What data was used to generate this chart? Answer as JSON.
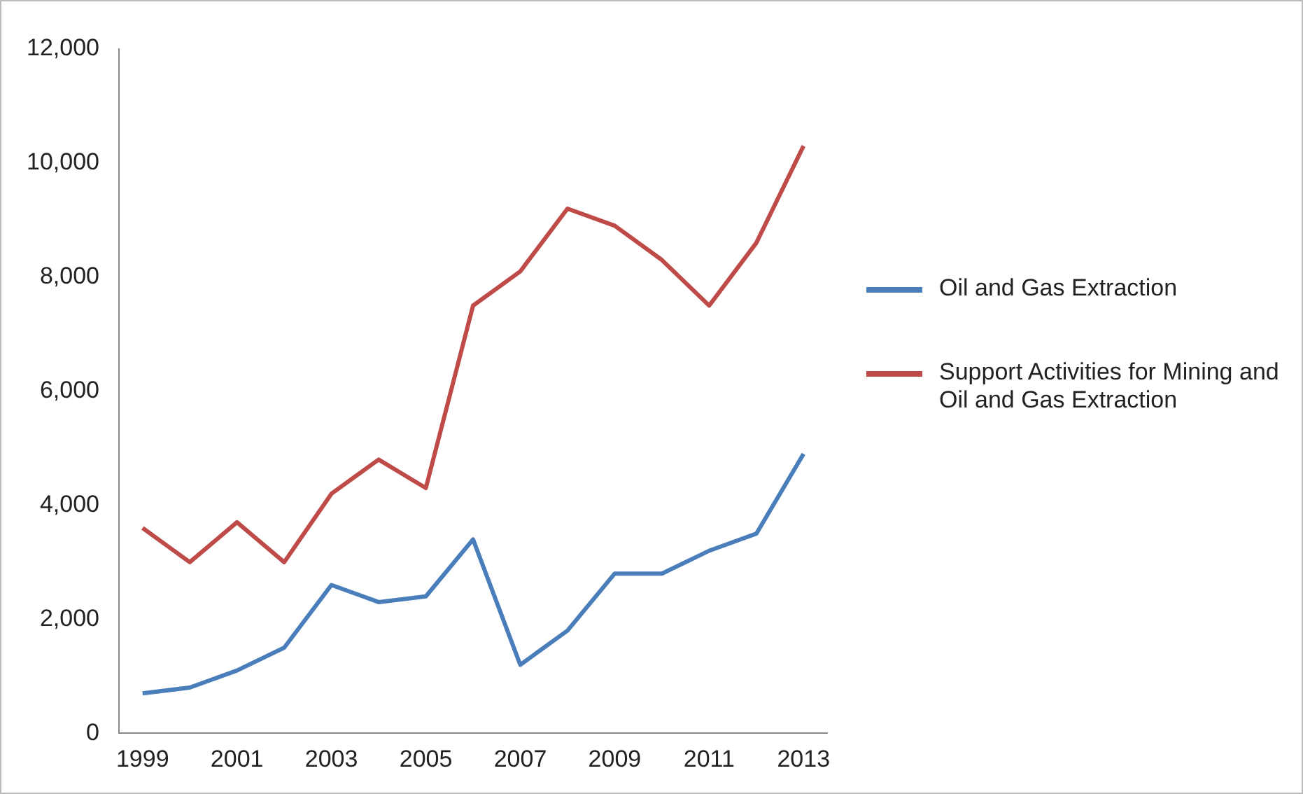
{
  "chart_data": {
    "type": "line",
    "categories": [
      "1999",
      null,
      "2001",
      null,
      "2003",
      null,
      "2005",
      null,
      "2007",
      null,
      "2009",
      null,
      "2011",
      null,
      "2013"
    ],
    "series": [
      {
        "name": "Oil and Gas Extraction",
        "color": "#4a7ebb",
        "values": [
          700,
          800,
          1100,
          1500,
          2600,
          2300,
          2400,
          3400,
          1200,
          1800,
          2800,
          2800,
          3200,
          3500,
          4900
        ]
      },
      {
        "name": "Support Activities for Mining and Oil and Gas Extraction",
        "color": "#be4b48",
        "values": [
          3600,
          3000,
          3700,
          3000,
          4200,
          4800,
          4300,
          7500,
          8100,
          9200,
          8900,
          8300,
          7500,
          8600,
          10300
        ]
      }
    ],
    "ylim": [
      0,
      12000
    ],
    "yticks": [
      0,
      {
        "value": 2000,
        "label": "2,000"
      },
      {
        "value": 4000,
        "label": "4,000"
      },
      {
        "value": 6000,
        "label": "6,000"
      },
      {
        "value": 8000,
        "label": "8,000"
      },
      {
        "value": 10000,
        "label": "10,000"
      },
      {
        "value": 12000,
        "label": "12,000"
      }
    ],
    "grid": false,
    "legend": "right",
    "marker": "none",
    "line_style": "solid"
  }
}
